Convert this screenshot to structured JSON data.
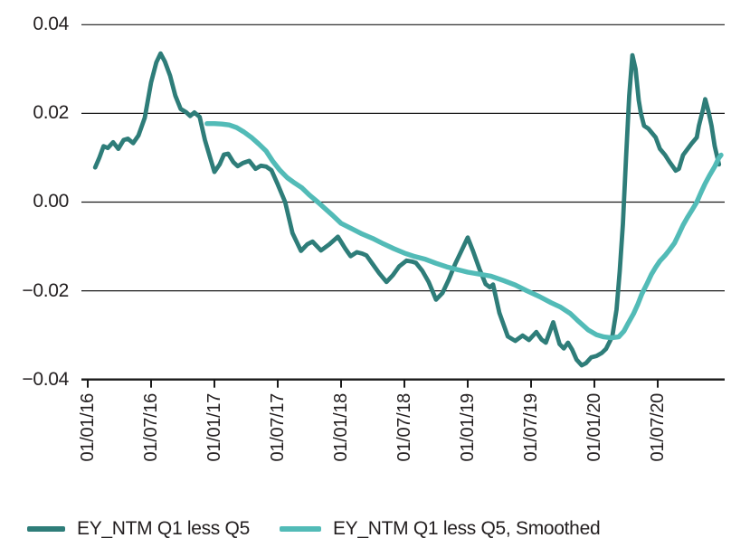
{
  "chart_data": {
    "type": "line",
    "title": "",
    "xlabel": "",
    "ylabel": "",
    "grid": true,
    "legend_position": "bottom",
    "x_axis": {
      "unit": "months since 2016-01-01",
      "tick_labels": [
        "01/01/16",
        "01/07/16",
        "01/01/17",
        "01/07/17",
        "01/01/18",
        "01/07/18",
        "01/01/19",
        "01/07/19",
        "01/01/20",
        "01/07/20"
      ],
      "tick_months": [
        0,
        6,
        12,
        18,
        24,
        30,
        36,
        42,
        48,
        54
      ]
    },
    "y_axis": {
      "tick_labels": [
        "0.04",
        "0.02",
        "0.00",
        "−0.02",
        "−0.04"
      ],
      "tick_values": [
        0.04,
        0.02,
        0,
        -0.02,
        -0.04
      ],
      "range": [
        -0.04,
        0.04
      ]
    },
    "colors": {
      "axis": "#1a1a1a",
      "grid": "#1a1a1a",
      "text": "#231f20",
      "background": "#ffffff"
    },
    "series": [
      {
        "name": "EY_NTM Q1 less Q5",
        "color": "#2E7D79",
        "stroke_width": 4.8,
        "points": [
          [
            0.7,
            0.0078
          ],
          [
            1.1,
            0.01
          ],
          [
            1.5,
            0.0126
          ],
          [
            1.9,
            0.0122
          ],
          [
            2.4,
            0.0135
          ],
          [
            2.9,
            0.012
          ],
          [
            3.4,
            0.014
          ],
          [
            3.8,
            0.0143
          ],
          [
            4.3,
            0.0133
          ],
          [
            4.8,
            0.015
          ],
          [
            5.4,
            0.019
          ],
          [
            6.0,
            0.027
          ],
          [
            6.5,
            0.0315
          ],
          [
            6.9,
            0.0335
          ],
          [
            7.3,
            0.0317
          ],
          [
            7.8,
            0.0285
          ],
          [
            8.3,
            0.024
          ],
          [
            8.8,
            0.021
          ],
          [
            9.3,
            0.0203
          ],
          [
            9.7,
            0.0194
          ],
          [
            10.1,
            0.0202
          ],
          [
            10.6,
            0.0192
          ],
          [
            11.1,
            0.014
          ],
          [
            11.6,
            0.01
          ],
          [
            12.0,
            0.0068
          ],
          [
            12.5,
            0.0085
          ],
          [
            12.9,
            0.0107
          ],
          [
            13.3,
            0.0109
          ],
          [
            13.8,
            0.009
          ],
          [
            14.2,
            0.0081
          ],
          [
            14.7,
            0.0088
          ],
          [
            15.3,
            0.0093
          ],
          [
            15.9,
            0.0075
          ],
          [
            16.4,
            0.0082
          ],
          [
            16.9,
            0.008
          ],
          [
            17.4,
            0.0072
          ],
          [
            18.0,
            0.004
          ],
          [
            18.7,
            0.0
          ],
          [
            19.4,
            -0.007
          ],
          [
            20.2,
            -0.011
          ],
          [
            20.8,
            -0.0095
          ],
          [
            21.3,
            -0.0089
          ],
          [
            22.1,
            -0.0109
          ],
          [
            22.9,
            -0.0095
          ],
          [
            23.7,
            -0.0078
          ],
          [
            24.4,
            -0.0105
          ],
          [
            24.9,
            -0.0122
          ],
          [
            25.5,
            -0.0113
          ],
          [
            26.0,
            -0.0116
          ],
          [
            26.4,
            -0.012
          ],
          [
            27.0,
            -0.014
          ],
          [
            27.6,
            -0.016
          ],
          [
            28.3,
            -0.018
          ],
          [
            28.9,
            -0.0165
          ],
          [
            29.5,
            -0.0145
          ],
          [
            30.2,
            -0.0132
          ],
          [
            30.7,
            -0.0134
          ],
          [
            31.1,
            -0.0137
          ],
          [
            31.7,
            -0.0155
          ],
          [
            32.3,
            -0.018
          ],
          [
            33.0,
            -0.022
          ],
          [
            33.6,
            -0.0205
          ],
          [
            34.2,
            -0.0175
          ],
          [
            34.8,
            -0.014
          ],
          [
            35.4,
            -0.011
          ],
          [
            36.0,
            -0.008
          ],
          [
            36.5,
            -0.011
          ],
          [
            37.1,
            -0.015
          ],
          [
            37.7,
            -0.0185
          ],
          [
            38.1,
            -0.0192
          ],
          [
            38.4,
            -0.0186
          ],
          [
            39.0,
            -0.025
          ],
          [
            39.8,
            -0.0303
          ],
          [
            40.5,
            -0.0313
          ],
          [
            41.2,
            -0.0301
          ],
          [
            41.8,
            -0.0311
          ],
          [
            42.5,
            -0.0293
          ],
          [
            43.0,
            -0.031
          ],
          [
            43.4,
            -0.0317
          ],
          [
            44.1,
            -0.0271
          ],
          [
            44.7,
            -0.032
          ],
          [
            45.1,
            -0.033
          ],
          [
            45.5,
            -0.0317
          ],
          [
            45.9,
            -0.0333
          ],
          [
            46.3,
            -0.0355
          ],
          [
            46.8,
            -0.0368
          ],
          [
            47.2,
            -0.0363
          ],
          [
            47.7,
            -0.035
          ],
          [
            48.2,
            -0.0347
          ],
          [
            48.7,
            -0.034
          ],
          [
            49.1,
            -0.0331
          ],
          [
            49.7,
            -0.0303
          ],
          [
            50.1,
            -0.0242
          ],
          [
            50.4,
            -0.0156
          ],
          [
            50.7,
            -0.005
          ],
          [
            51.0,
            0.01
          ],
          [
            51.3,
            0.024
          ],
          [
            51.6,
            0.0331
          ],
          [
            51.9,
            0.03
          ],
          [
            52.2,
            0.023
          ],
          [
            52.4,
            0.02
          ],
          [
            52.7,
            0.0172
          ],
          [
            53.1,
            0.0166
          ],
          [
            53.8,
            0.0146
          ],
          [
            54.2,
            0.012
          ],
          [
            54.7,
            0.0106
          ],
          [
            55.1,
            0.0091
          ],
          [
            55.7,
            0.0071
          ],
          [
            56.0,
            0.0075
          ],
          [
            56.4,
            0.0106
          ],
          [
            57.2,
            0.0132
          ],
          [
            57.7,
            0.0146
          ],
          [
            57.9,
            0.0172
          ],
          [
            58.3,
            0.021
          ],
          [
            58.5,
            0.0232
          ],
          [
            58.8,
            0.0205
          ],
          [
            59.1,
            0.0172
          ],
          [
            59.4,
            0.0126
          ],
          [
            59.8,
            0.0085
          ]
        ]
      },
      {
        "name": "EY_NTM Q1 less Q5, Smoothed",
        "color": "#52BBB7",
        "stroke_width": 5.4,
        "points": [
          [
            11.3,
            0.0177
          ],
          [
            12.0,
            0.0177
          ],
          [
            12.7,
            0.0176
          ],
          [
            13.4,
            0.0174
          ],
          [
            14.1,
            0.0168
          ],
          [
            14.8,
            0.0158
          ],
          [
            15.5,
            0.0146
          ],
          [
            16.2,
            0.0131
          ],
          [
            16.9,
            0.0115
          ],
          [
            17.5,
            0.0093
          ],
          [
            18.2,
            0.0072
          ],
          [
            18.9,
            0.0055
          ],
          [
            19.6,
            0.0043
          ],
          [
            20.3,
            0.0032
          ],
          [
            21.0,
            0.0016
          ],
          [
            21.8,
            0.0
          ],
          [
            22.5,
            -0.0015
          ],
          [
            23.2,
            -0.003
          ],
          [
            24.0,
            -0.0048
          ],
          [
            25.0,
            -0.006
          ],
          [
            26.0,
            -0.0072
          ],
          [
            27.0,
            -0.0082
          ],
          [
            28.0,
            -0.0094
          ],
          [
            29.0,
            -0.0105
          ],
          [
            30.0,
            -0.0115
          ],
          [
            31.0,
            -0.0123
          ],
          [
            32.0,
            -0.0129
          ],
          [
            33.0,
            -0.0138
          ],
          [
            34.0,
            -0.0146
          ],
          [
            35.0,
            -0.0152
          ],
          [
            36.0,
            -0.0158
          ],
          [
            37.0,
            -0.0162
          ],
          [
            38.2,
            -0.0167
          ],
          [
            39.4,
            -0.0177
          ],
          [
            40.5,
            -0.0187
          ],
          [
            41.6,
            -0.02
          ],
          [
            42.8,
            -0.0213
          ],
          [
            43.9,
            -0.0227
          ],
          [
            44.8,
            -0.0237
          ],
          [
            45.7,
            -0.0251
          ],
          [
            46.5,
            -0.0269
          ],
          [
            47.4,
            -0.0288
          ],
          [
            48.2,
            -0.0299
          ],
          [
            48.9,
            -0.0304
          ],
          [
            49.6,
            -0.0306
          ],
          [
            50.3,
            -0.0304
          ],
          [
            50.8,
            -0.0291
          ],
          [
            51.2,
            -0.0273
          ],
          [
            51.7,
            -0.0252
          ],
          [
            52.1,
            -0.0231
          ],
          [
            52.5,
            -0.0207
          ],
          [
            53.0,
            -0.0183
          ],
          [
            53.4,
            -0.0163
          ],
          [
            53.8,
            -0.0147
          ],
          [
            54.2,
            -0.0133
          ],
          [
            54.7,
            -0.012
          ],
          [
            55.1,
            -0.0108
          ],
          [
            55.6,
            -0.0092
          ],
          [
            56.0,
            -0.0072
          ],
          [
            56.4,
            -0.0052
          ],
          [
            56.8,
            -0.0035
          ],
          [
            57.3,
            -0.0016
          ],
          [
            57.7,
            0.0
          ],
          [
            58.1,
            0.0022
          ],
          [
            58.5,
            0.0042
          ],
          [
            58.9,
            0.006
          ],
          [
            59.4,
            0.008
          ],
          [
            59.8,
            0.01
          ],
          [
            60.0,
            0.0106
          ]
        ]
      }
    ]
  }
}
